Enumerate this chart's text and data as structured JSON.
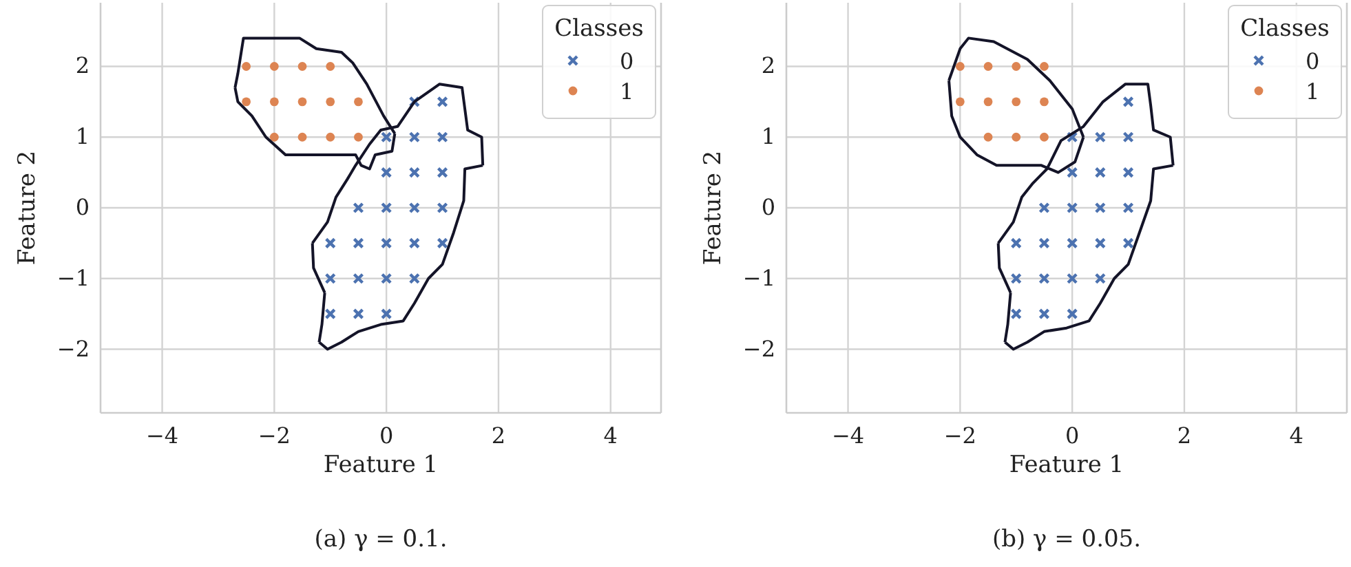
{
  "chart_data": [
    {
      "type": "scatter",
      "title": "(a) γ = 0.1.",
      "xlabel": "Feature 1",
      "ylabel": "Feature 2",
      "legend_title": "Classes",
      "legend": "top right",
      "grid": true,
      "xlim": [
        -5.1,
        4.9
      ],
      "ylim": [
        -2.9,
        2.9
      ],
      "xticks": [
        -4,
        -2,
        0,
        2,
        4
      ],
      "yticks": [
        -2,
        -1,
        0,
        1,
        2
      ],
      "series": [
        {
          "name": "0",
          "color": "#4c72b0",
          "marker": "cross",
          "x": [
            0.5,
            1.0,
            0,
            0.5,
            1.0,
            0,
            0.5,
            1.0,
            -0.5,
            0,
            0.5,
            1.0,
            -1.0,
            -0.5,
            0,
            0.5,
            1.0,
            -1.0,
            -0.5,
            0,
            0.5,
            -1.0,
            -0.5,
            0
          ],
          "values": [
            1.5,
            1.5,
            1.0,
            1.0,
            1.0,
            0.5,
            0.5,
            0.5,
            0,
            0,
            0,
            0,
            -0.5,
            -0.5,
            -0.5,
            -0.5,
            -0.5,
            -1.0,
            -1.0,
            -1.0,
            -1.0,
            -1.5,
            -1.5,
            -1.5
          ]
        },
        {
          "name": "1",
          "color": "#dd8452",
          "marker": "circle",
          "x": [
            -2.5,
            -2.0,
            -1.5,
            -1.0,
            -2.5,
            -2.0,
            -1.5,
            -1.0,
            -0.5,
            -2.0,
            -1.5,
            -1.0,
            -0.5
          ],
          "values": [
            2.0,
            2.0,
            2.0,
            2.0,
            1.5,
            1.5,
            1.5,
            1.5,
            1.5,
            1.0,
            1.0,
            1.0,
            1.0
          ]
        },
        {
          "type": "line",
          "color": "#141428",
          "marker": "none",
          "x": [
            -2.7,
            -2.65,
            -2.55,
            -1.55,
            -1.25,
            -0.8,
            -0.6,
            -0.35,
            -0.05,
            0.15,
            null,
            -2.7,
            -2.65,
            -2.4,
            -2.15,
            -1.8,
            -0.55,
            -0.45,
            -0.3,
            -0.2,
            0.1,
            0.15
          ],
          "values": [
            1.7,
            1.9,
            2.4,
            2.4,
            2.25,
            2.2,
            2.05,
            1.75,
            1.3,
            1.05,
            null,
            1.7,
            1.5,
            1.3,
            1.0,
            0.75,
            0.75,
            0.6,
            0.55,
            0.75,
            0.8,
            1.05
          ]
        },
        {
          "type": "line",
          "color": "#141428",
          "marker": "none",
          "x": [
            -1.32,
            -1.05,
            -0.9,
            -0.7,
            -0.55,
            -0.3,
            -0.1,
            0.2,
            0.5,
            0.95,
            1.35,
            1.4,
            1.45,
            1.7,
            1.72,
            null,
            -1.2,
            -1.05,
            -0.8,
            -0.5,
            -0.1,
            0.3,
            0.5,
            0.75,
            1.0,
            1.2,
            1.38,
            1.4,
            1.72,
            null,
            -1.2,
            -1.15,
            -1.1,
            null,
            -1.32,
            -1.3,
            -1.1
          ],
          "values": [
            -0.5,
            -0.2,
            0.15,
            0.4,
            0.6,
            0.9,
            1.1,
            1.15,
            1.5,
            1.75,
            1.7,
            1.4,
            1.1,
            1.0,
            0.6,
            null,
            -1.9,
            -2.0,
            -1.9,
            -1.75,
            -1.65,
            -1.6,
            -1.35,
            -1.0,
            -0.8,
            -0.35,
            0.1,
            0.55,
            0.6,
            null,
            -1.9,
            -1.65,
            -1.2,
            null,
            -0.5,
            -0.85,
            -1.2
          ]
        }
      ]
    },
    {
      "type": "scatter",
      "title": "(b) γ = 0.05.",
      "xlabel": "Feature 1",
      "ylabel": "Feature 2",
      "legend_title": "Classes",
      "legend": "top right",
      "grid": true,
      "xlim": [
        -5.1,
        4.9
      ],
      "ylim": [
        -2.9,
        2.9
      ],
      "xticks": [
        -4,
        -2,
        0,
        2,
        4
      ],
      "yticks": [
        -2,
        -1,
        0,
        1,
        2
      ],
      "series": [
        {
          "name": "0",
          "color": "#4c72b0",
          "marker": "cross",
          "x": [
            1.0,
            0,
            0.5,
            1.0,
            0,
            0.5,
            1.0,
            -0.5,
            0,
            0.5,
            1.0,
            -1.0,
            -0.5,
            0,
            0.5,
            1.0,
            -1.0,
            -0.5,
            0,
            0.5,
            -1.0,
            -0.5,
            0
          ],
          "values": [
            1.5,
            1.0,
            1.0,
            1.0,
            0.5,
            0.5,
            0.5,
            0,
            0,
            0,
            0,
            -0.5,
            -0.5,
            -0.5,
            -0.5,
            -0.5,
            -1.0,
            -1.0,
            -1.0,
            -1.0,
            -1.5,
            -1.5,
            -1.5
          ]
        },
        {
          "name": "1",
          "color": "#dd8452",
          "marker": "circle",
          "x": [
            -2.0,
            -1.5,
            -1.0,
            -0.5,
            -2.0,
            -1.5,
            -1.0,
            -0.5,
            -1.5,
            -1.0,
            -0.5
          ],
          "values": [
            2.0,
            2.0,
            2.0,
            2.0,
            1.5,
            1.5,
            1.5,
            1.5,
            1.0,
            1.0,
            1.0
          ]
        },
        {
          "type": "line",
          "color": "#141428",
          "marker": "none",
          "x": [
            -2.2,
            -2.0,
            -1.85,
            -1.4,
            -0.8,
            -0.4,
            0,
            0.2,
            null,
            -2.2,
            -2.15,
            -2.0,
            -1.7,
            -1.35,
            -0.55,
            -0.25,
            0.05,
            0.2
          ],
          "values": [
            1.8,
            2.25,
            2.4,
            2.35,
            2.1,
            1.8,
            1.4,
            1.0,
            null,
            1.8,
            1.3,
            1.0,
            0.75,
            0.6,
            0.6,
            0.5,
            0.65,
            1.0
          ]
        },
        {
          "type": "line",
          "color": "#141428",
          "marker": "none",
          "x": [
            -1.32,
            -1.05,
            -0.9,
            -0.7,
            -0.45,
            -0.2,
            0.2,
            0.55,
            0.95,
            1.35,
            1.4,
            1.45,
            1.75,
            1.8,
            null,
            -1.2,
            -1.05,
            -0.8,
            -0.5,
            -0.1,
            0.3,
            0.5,
            0.75,
            1.0,
            1.2,
            1.4,
            1.45,
            1.8,
            null,
            -1.2,
            -1.15,
            -1.1,
            null,
            -1.32,
            -1.3,
            -1.1
          ],
          "values": [
            -0.5,
            -0.2,
            0.15,
            0.35,
            0.55,
            0.95,
            1.15,
            1.5,
            1.75,
            1.75,
            1.45,
            1.1,
            1.0,
            0.6,
            null,
            -1.9,
            -2.0,
            -1.9,
            -1.75,
            -1.7,
            -1.6,
            -1.35,
            -1.0,
            -0.8,
            -0.35,
            0.1,
            0.55,
            0.6,
            null,
            -1.9,
            -1.65,
            -1.2,
            null,
            -0.5,
            -0.85,
            -1.2
          ]
        }
      ]
    }
  ]
}
